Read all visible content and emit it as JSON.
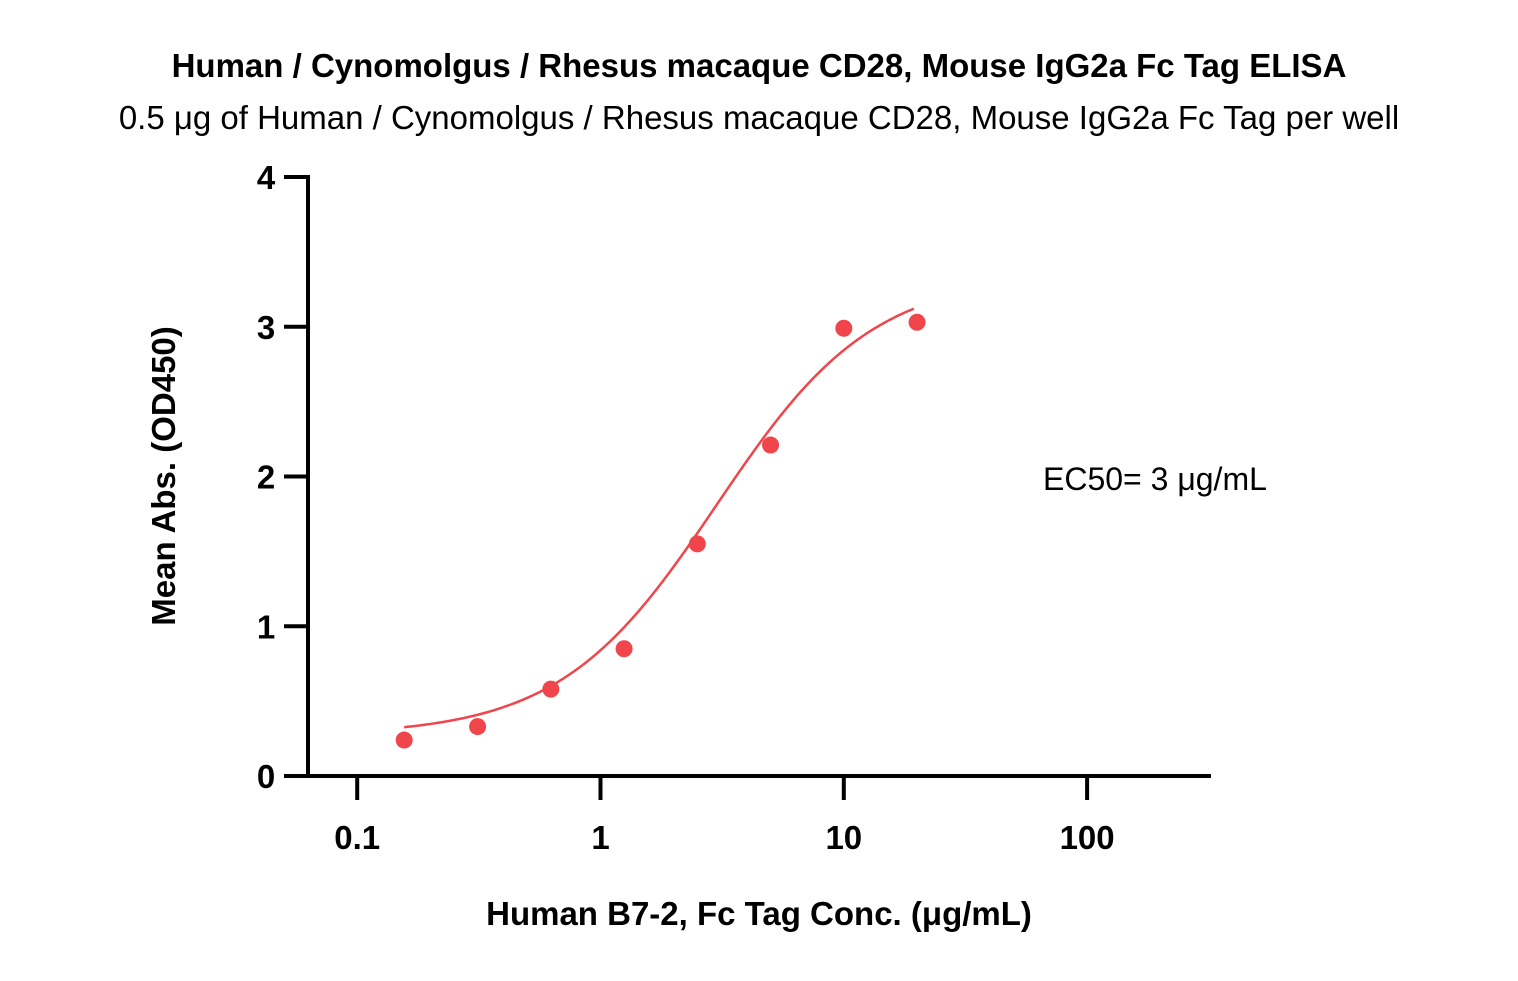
{
  "chart_data": {
    "type": "scatter",
    "title": "Human / Cynomolgus / Rhesus macaque CD28, Mouse IgG2a Fc Tag ELISA",
    "subtitle": "0.5 μg of Human / Cynomolgus / Rhesus macaque CD28, Mouse IgG2a Fc Tag per well",
    "xlabel": "Human B7-2, Fc Tag Conc. (μg/mL)",
    "ylabel": "Mean Abs. (OD450)",
    "x_scale": "log",
    "xlim": [
      0.063,
      300
    ],
    "ylim": [
      0,
      4
    ],
    "x_ticks": [
      {
        "value": 0.1,
        "label": "0.1"
      },
      {
        "value": 1,
        "label": "1"
      },
      {
        "value": 10,
        "label": "10"
      },
      {
        "value": 100,
        "label": "100"
      }
    ],
    "y_ticks": [
      {
        "value": 0,
        "label": "0"
      },
      {
        "value": 1,
        "label": "1"
      },
      {
        "value": 2,
        "label": "2"
      },
      {
        "value": 3,
        "label": "3"
      },
      {
        "value": 4,
        "label": "4"
      }
    ],
    "grid": false,
    "legend": "none",
    "color": "#f0454a",
    "series": [
      {
        "x": [
          0.156,
          0.3125,
          0.625,
          1.25,
          2.5,
          5,
          10,
          20
        ],
        "y": [
          0.24,
          0.33,
          0.58,
          0.85,
          1.55,
          2.21,
          2.99,
          3.03
        ],
        "fit": "4PL sigmoid"
      }
    ],
    "annotations": [
      {
        "text": "EC50= 3 μg/mL"
      }
    ]
  }
}
